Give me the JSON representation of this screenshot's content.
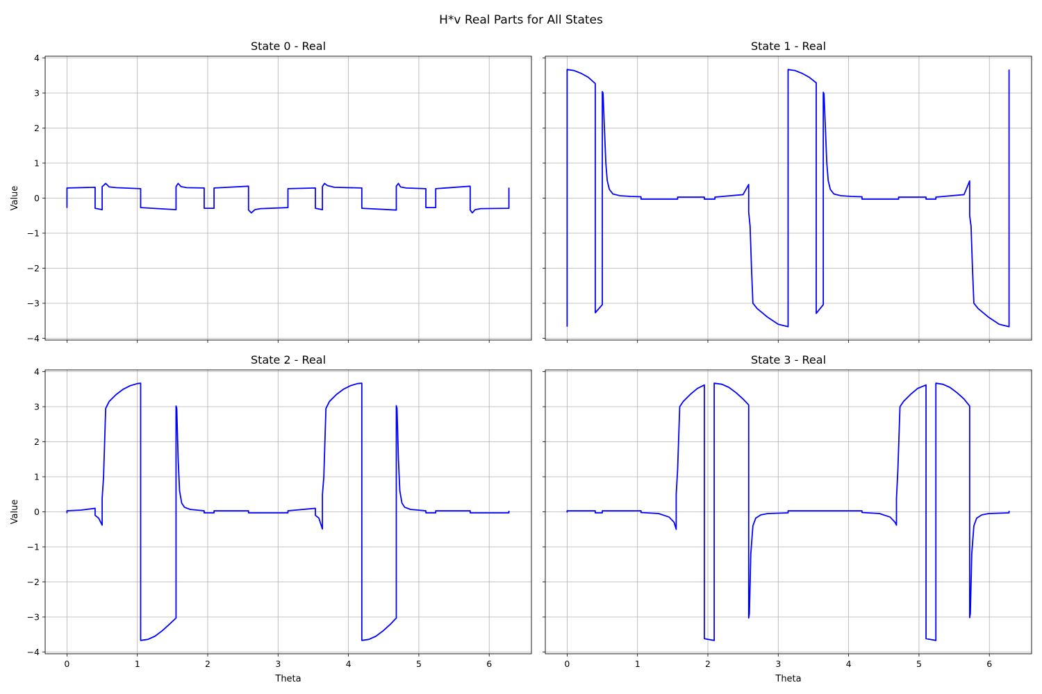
{
  "figure": {
    "suptitle": "H*v Real Parts for All States"
  },
  "chart_data": [
    {
      "type": "line",
      "title": "State 0 - Real",
      "xlabel": "",
      "ylabel": "Value",
      "xlim": [
        -0.31,
        6.6
      ],
      "ylim": [
        -4.05,
        4.05
      ],
      "xticks": [
        0,
        1,
        2,
        3,
        4,
        5,
        6
      ],
      "yticks": [
        -4,
        -3,
        -2,
        -1,
        0,
        1,
        2,
        3,
        4
      ],
      "show_xticklabels": false,
      "show_yticklabels": true,
      "grid": true,
      "series": [
        {
          "color": "#0000ff",
          "x": [
            0,
            0,
            0.4,
            0.4,
            0.5,
            0.5,
            0.52,
            0.55,
            0.6,
            0.7,
            1.047,
            1.047,
            1.55,
            1.55,
            1.58,
            1.62,
            1.7,
            1.95,
            1.95,
            2.09,
            2.09,
            2.58,
            2.58,
            2.62,
            2.67,
            2.75,
            3.14,
            3.14,
            3.53,
            3.53,
            3.63,
            3.63,
            3.66,
            3.7,
            3.8,
            4.19,
            4.19,
            4.68,
            4.68,
            4.71,
            4.74,
            4.82,
            5.1,
            5.1,
            5.24,
            5.24,
            5.73,
            5.73,
            5.76,
            5.8,
            5.88,
            6.28,
            6.28
          ],
          "y": [
            -0.28,
            0.29,
            0.31,
            -0.29,
            -0.33,
            0.33,
            0.36,
            0.42,
            0.32,
            0.3,
            0.27,
            -0.27,
            -0.33,
            0.33,
            0.42,
            0.33,
            0.3,
            0.29,
            -0.29,
            -0.29,
            0.29,
            0.34,
            -0.34,
            -0.42,
            -0.33,
            -0.3,
            -0.27,
            0.27,
            0.29,
            -0.29,
            -0.33,
            0.33,
            0.42,
            0.36,
            0.31,
            0.29,
            -0.29,
            -0.34,
            0.34,
            0.42,
            0.32,
            0.29,
            0.27,
            -0.27,
            -0.27,
            0.27,
            0.34,
            -0.34,
            -0.42,
            -0.33,
            -0.3,
            -0.29,
            0.3
          ]
        }
      ]
    },
    {
      "type": "line",
      "title": "State 1 - Real",
      "xlabel": "",
      "ylabel": "",
      "xlim": [
        -0.31,
        6.6
      ],
      "ylim": [
        -4.05,
        4.05
      ],
      "xticks": [
        0,
        1,
        2,
        3,
        4,
        5,
        6
      ],
      "yticks": [
        -4,
        -3,
        -2,
        -1,
        0,
        1,
        2,
        3,
        4
      ],
      "show_xticklabels": false,
      "show_yticklabels": false,
      "grid": true,
      "series": [
        {
          "color": "#0000ff",
          "x": [
            0,
            0,
            0.1,
            0.2,
            0.3,
            0.4,
            0.4,
            0.5,
            0.5,
            0.51,
            0.53,
            0.55,
            0.57,
            0.6,
            0.65,
            0.75,
            0.9,
            1.05,
            1.05,
            1.57,
            1.57,
            1.95,
            1.95,
            2.1,
            2.1,
            2.5,
            2.58,
            2.58,
            2.6,
            2.62,
            2.64,
            2.7,
            2.85,
            3.0,
            3.14,
            3.14,
            3.24,
            3.34,
            3.44,
            3.54,
            3.54,
            3.64,
            3.64,
            3.65,
            3.67,
            3.69,
            3.71,
            3.74,
            3.79,
            3.89,
            4.04,
            4.19,
            4.19,
            4.71,
            4.71,
            5.1,
            5.1,
            5.24,
            5.24,
            5.64,
            5.72,
            5.72,
            5.74,
            5.76,
            5.78,
            5.84,
            5.99,
            6.14,
            6.28,
            6.28
          ],
          "y": [
            -3.67,
            3.67,
            3.64,
            3.56,
            3.45,
            3.27,
            -3.27,
            -3.04,
            3.04,
            3.0,
            2.0,
            1.0,
            0.5,
            0.25,
            0.12,
            0.07,
            0.05,
            0.04,
            -0.03,
            -0.03,
            0.03,
            0.03,
            -0.03,
            -0.03,
            0.03,
            0.1,
            0.39,
            -0.4,
            -0.8,
            -2.0,
            -3.0,
            -3.15,
            -3.4,
            -3.6,
            -3.67,
            3.67,
            3.64,
            3.56,
            3.45,
            3.29,
            -3.29,
            -3.04,
            3.02,
            2.98,
            2.0,
            1.0,
            0.5,
            0.25,
            0.12,
            0.07,
            0.05,
            0.04,
            -0.03,
            -0.03,
            0.03,
            0.03,
            -0.03,
            -0.03,
            0.03,
            0.1,
            0.49,
            -0.5,
            -0.8,
            -2.0,
            -3.0,
            -3.15,
            -3.4,
            -3.6,
            -3.67,
            3.67
          ]
        }
      ]
    },
    {
      "type": "line",
      "title": "State 2 - Real",
      "xlabel": "Theta",
      "ylabel": "Value",
      "xlim": [
        -0.31,
        6.6
      ],
      "ylim": [
        -4.05,
        4.05
      ],
      "xticks": [
        0,
        1,
        2,
        3,
        4,
        5,
        6
      ],
      "yticks": [
        -4,
        -3,
        -2,
        -1,
        0,
        1,
        2,
        3,
        4
      ],
      "show_xticklabels": true,
      "show_yticklabels": true,
      "grid": true,
      "series": [
        {
          "color": "#0000ff",
          "x": [
            0,
            0,
            0.2,
            0.4,
            0.4,
            0.45,
            0.5,
            0.5,
            0.52,
            0.55,
            0.6,
            0.7,
            0.8,
            0.9,
            1.0,
            1.047,
            1.047,
            1.15,
            1.25,
            1.35,
            1.45,
            1.55,
            1.55,
            1.56,
            1.58,
            1.6,
            1.63,
            1.67,
            1.75,
            1.95,
            1.95,
            2.09,
            2.09,
            2.58,
            2.58,
            3.14,
            3.14,
            3.53,
            3.53,
            3.58,
            3.63,
            3.63,
            3.65,
            3.68,
            3.73,
            3.83,
            3.93,
            4.03,
            4.13,
            4.19,
            4.19,
            4.29,
            4.39,
            4.49,
            4.59,
            4.68,
            4.68,
            4.69,
            4.71,
            4.73,
            4.76,
            4.8,
            4.88,
            5.1,
            5.1,
            5.24,
            5.24,
            5.73,
            5.73,
            6.28,
            6.28
          ],
          "y": [
            -0.04,
            0.03,
            0.05,
            0.1,
            -0.1,
            -0.18,
            -0.38,
            0.38,
            1.0,
            2.95,
            3.15,
            3.35,
            3.5,
            3.6,
            3.66,
            3.67,
            -3.67,
            -3.64,
            -3.55,
            -3.4,
            -3.22,
            -3.03,
            3.02,
            2.95,
            1.5,
            0.6,
            0.25,
            0.13,
            0.07,
            0.03,
            -0.03,
            -0.03,
            0.03,
            0.03,
            -0.03,
            -0.03,
            0.03,
            0.1,
            -0.1,
            -0.18,
            -0.49,
            0.49,
            1.0,
            2.95,
            3.15,
            3.35,
            3.5,
            3.6,
            3.66,
            3.67,
            -3.67,
            -3.64,
            -3.55,
            -3.4,
            -3.22,
            -3.03,
            3.03,
            2.95,
            1.5,
            0.6,
            0.25,
            0.13,
            0.07,
            0.03,
            -0.03,
            -0.03,
            0.03,
            0.03,
            -0.03,
            -0.03,
            0.03
          ]
        }
      ]
    },
    {
      "type": "line",
      "title": "State 3 - Real",
      "xlabel": "Theta",
      "ylabel": "",
      "xlim": [
        -0.31,
        6.6
      ],
      "ylim": [
        -4.05,
        4.05
      ],
      "xticks": [
        0,
        1,
        2,
        3,
        4,
        5,
        6
      ],
      "yticks": [
        -4,
        -3,
        -2,
        -1,
        0,
        1,
        2,
        3,
        4
      ],
      "show_xticklabels": true,
      "show_yticklabels": false,
      "grid": true,
      "series": [
        {
          "color": "#0000ff",
          "x": [
            0,
            0,
            0.4,
            0.4,
            0.5,
            0.5,
            1.05,
            1.05,
            1.3,
            1.45,
            1.52,
            1.55,
            1.55,
            1.57,
            1.6,
            1.65,
            1.75,
            1.85,
            1.95,
            1.95,
            2.09,
            2.09,
            2.2,
            2.3,
            2.4,
            2.5,
            2.58,
            2.58,
            2.59,
            2.61,
            2.64,
            2.68,
            2.75,
            2.85,
            3.14,
            3.14,
            3.53,
            3.53,
            4.19,
            4.19,
            4.44,
            4.59,
            4.66,
            4.68,
            4.68,
            4.7,
            4.73,
            4.78,
            4.88,
            4.98,
            5.1,
            5.1,
            5.24,
            5.24,
            5.34,
            5.44,
            5.54,
            5.64,
            5.72,
            5.72,
            5.73,
            5.75,
            5.78,
            5.82,
            5.89,
            5.99,
            6.28,
            6.28
          ],
          "y": [
            -0.02,
            0.03,
            0.03,
            -0.03,
            -0.03,
            0.03,
            0.03,
            -0.02,
            -0.05,
            -0.15,
            -0.3,
            -0.5,
            0.5,
            1.2,
            3.0,
            3.15,
            3.35,
            3.52,
            3.62,
            -3.62,
            -3.67,
            3.67,
            3.64,
            3.55,
            3.4,
            3.22,
            3.05,
            -3.03,
            -2.9,
            -1.2,
            -0.4,
            -0.18,
            -0.09,
            -0.05,
            -0.03,
            0.03,
            0.03,
            0.03,
            0.03,
            -0.02,
            -0.05,
            -0.15,
            -0.3,
            -0.38,
            0.38,
            1.2,
            3.0,
            3.15,
            3.35,
            3.52,
            3.62,
            -3.62,
            -3.67,
            3.67,
            3.64,
            3.55,
            3.4,
            3.22,
            3.02,
            -3.02,
            -2.9,
            -1.2,
            -0.4,
            -0.18,
            -0.09,
            -0.05,
            -0.03,
            0.03
          ]
        }
      ]
    }
  ]
}
